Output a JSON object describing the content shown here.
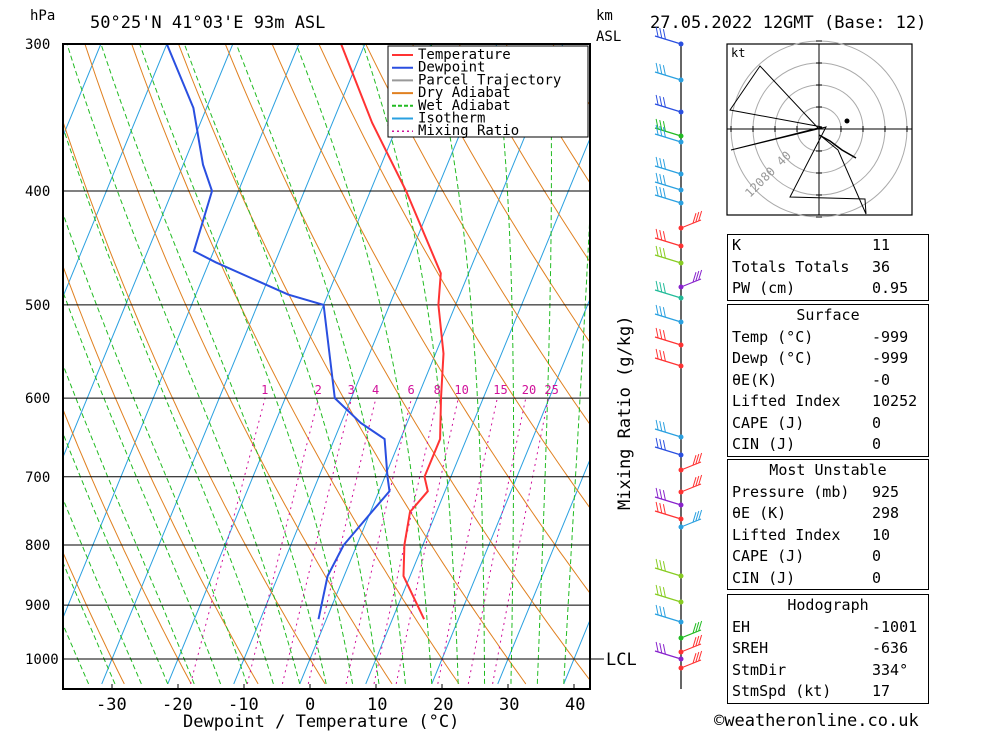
{
  "header": {
    "location": "50°25'N  41°03'E  93m  ASL",
    "datetime": "27.05.2022  12GMT  (Base: 12)",
    "pressure_unit": "hPa",
    "height_unit": "km",
    "height_unit2": "ASL"
  },
  "chart_data": {
    "type": "line",
    "title": "",
    "xlabel": "Dewpoint / Temperature (°C)",
    "ylabel": "hPa",
    "y2label": "Mixing Ratio (g/kg)",
    "x_ticks": [
      -30,
      -20,
      -10,
      0,
      10,
      20,
      30,
      40
    ],
    "p_ticks": [
      300,
      400,
      500,
      600,
      700,
      800,
      900,
      1000
    ],
    "xlim": [
      -38,
      42
    ],
    "ylim": [
      1050,
      300
    ],
    "y_scale": "log",
    "grid": true,
    "lcl_label": "LCL",
    "mixing_ratio_labels": [
      "1",
      "2",
      "3",
      "4",
      "6",
      "8",
      "10",
      "15",
      "20",
      "25"
    ],
    "legend": {
      "position": "top-right",
      "entries": [
        {
          "name": "Temperature",
          "color": "#ff3333"
        },
        {
          "name": "Dewpoint",
          "color": "#2a4fe0"
        },
        {
          "name": "Parcel Trajectory",
          "color": "#999999"
        },
        {
          "name": "Dry Adiabat",
          "color": "#e08020"
        },
        {
          "name": "Wet Adiabat",
          "color": "#22bb22"
        },
        {
          "name": "Isotherm",
          "color": "#2aa0e0"
        },
        {
          "name": "Mixing Ratio",
          "color": "#d0109a"
        }
      ]
    },
    "series": [
      {
        "name": "Temperature",
        "points": [
          {
            "p": 925,
            "t": 14.8
          },
          {
            "p": 850,
            "t": 9.0
          },
          {
            "p": 800,
            "t": 7.2
          },
          {
            "p": 750,
            "t": 6.0
          },
          {
            "p": 720,
            "t": 7.4
          },
          {
            "p": 700,
            "t": 6.0
          },
          {
            "p": 650,
            "t": 6.0
          },
          {
            "p": 600,
            "t": 3.6
          },
          {
            "p": 550,
            "t": 1.2
          },
          {
            "p": 500,
            "t": -2.6
          },
          {
            "p": 470,
            "t": -4.2
          },
          {
            "p": 400,
            "t": -14.6
          },
          {
            "p": 350,
            "t": -24.0
          },
          {
            "p": 300,
            "t": -33.6
          }
        ]
      },
      {
        "name": "Dewpoint",
        "points": [
          {
            "p": 925,
            "t": -1.2
          },
          {
            "p": 850,
            "t": -2.5
          },
          {
            "p": 800,
            "t": -2.0
          },
          {
            "p": 750,
            "t": 0.2
          },
          {
            "p": 720,
            "t": 1.6
          },
          {
            "p": 700,
            "t": 0.4
          },
          {
            "p": 650,
            "t": -2.4
          },
          {
            "p": 630,
            "t": -7.0
          },
          {
            "p": 600,
            "t": -12.5
          },
          {
            "p": 500,
            "t": -20.0
          },
          {
            "p": 490,
            "t": -26.0
          },
          {
            "p": 460,
            "t": -39.0
          },
          {
            "p": 450,
            "t": -43.0
          },
          {
            "p": 400,
            "t": -44.0
          },
          {
            "p": 380,
            "t": -47.0
          },
          {
            "p": 340,
            "t": -52.0
          },
          {
            "p": 300,
            "t": -60.0
          }
        ]
      }
    ]
  },
  "hodograph": {
    "unit": "kt",
    "ring_labels": [
      "40",
      "80",
      "120"
    ]
  },
  "indices": {
    "k": {
      "label": "K",
      "value": "11"
    },
    "tt": {
      "label": "Totals Totals",
      "value": "36"
    },
    "pw": {
      "label": "PW (cm)",
      "value": "0.95"
    }
  },
  "surface": {
    "title": "Surface",
    "rows": [
      {
        "label": "Temp (°C)",
        "value": "-999"
      },
      {
        "label": "Dewp (°C)",
        "value": "-999"
      },
      {
        "label": "θE(K)",
        "value": "-0"
      },
      {
        "label": "Lifted Index",
        "value": "10252"
      },
      {
        "label": "CAPE (J)",
        "value": "0"
      },
      {
        "label": "CIN (J)",
        "value": "0"
      }
    ]
  },
  "most_unstable": {
    "title": "Most Unstable",
    "rows": [
      {
        "label": "Pressure (mb)",
        "value": "925"
      },
      {
        "label": "θE (K)",
        "value": "298"
      },
      {
        "label": "Lifted Index",
        "value": "10"
      },
      {
        "label": "CAPE (J)",
        "value": "0"
      },
      {
        "label": "CIN (J)",
        "value": "0"
      }
    ]
  },
  "hodo_table": {
    "title": "Hodograph",
    "rows": [
      {
        "label": "EH",
        "value": "-1001"
      },
      {
        "label": "SREH",
        "value": "-636"
      },
      {
        "label": "StmDir",
        "value": "334°"
      },
      {
        "label": "StmSpd (kt)",
        "value": "17"
      }
    ]
  },
  "footer": {
    "copyright": "©weatheronline.co.uk"
  }
}
